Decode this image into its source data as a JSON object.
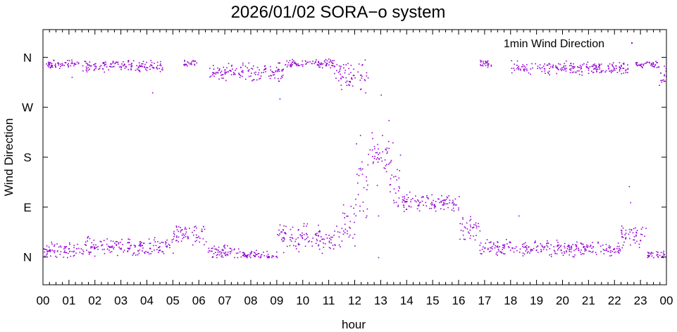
{
  "chart_data": {
    "type": "scatter",
    "title": "2026/01/02 SORA−o system",
    "xlabel": "hour",
    "ylabel": "Wind Direction",
    "x_ticks": [
      "00",
      "01",
      "02",
      "03",
      "04",
      "05",
      "06",
      "07",
      "08",
      "09",
      "10",
      "11",
      "12",
      "13",
      "14",
      "15",
      "16",
      "17",
      "18",
      "19",
      "20",
      "21",
      "22",
      "23",
      "00"
    ],
    "y_ticks": [
      {
        "value": 0,
        "label": "N"
      },
      {
        "value": 90,
        "label": "E"
      },
      {
        "value": 180,
        "label": "S"
      },
      {
        "value": 270,
        "label": "W"
      },
      {
        "value": 360,
        "label": "N"
      }
    ],
    "xlim": [
      0,
      24
    ],
    "ylim": [
      -50,
      410
    ],
    "legend": {
      "position": "top-right"
    },
    "grid": false,
    "series": [
      {
        "name": "1min Wind Direction",
        "color": "#9400d3",
        "marker": "dot",
        "segments": [
          {
            "x_start": 0.0,
            "x_end": 1.5,
            "y_center": 12,
            "spread": 12
          },
          {
            "x_start": 1.5,
            "x_end": 5.0,
            "y_center": 20,
            "spread": 14
          },
          {
            "x_start": 5.0,
            "x_end": 6.3,
            "y_center": 40,
            "spread": 15
          },
          {
            "x_start": 6.3,
            "x_end": 7.6,
            "y_center": 10,
            "spread": 10
          },
          {
            "x_start": 7.6,
            "x_end": 9.0,
            "y_center": 5,
            "spread": 6
          },
          {
            "x_start": 9.0,
            "x_end": 11.5,
            "y_center": 35,
            "spread": 22
          },
          {
            "x_start": 11.5,
            "x_end": 12.0,
            "y_center": 60,
            "spread": 40
          },
          {
            "x_start": 12.0,
            "x_end": 12.5,
            "y_center": 130,
            "spread": 50
          },
          {
            "x_start": 12.5,
            "x_end": 13.3,
            "y_center": 185,
            "spread": 25
          },
          {
            "x_start": 13.3,
            "x_end": 13.8,
            "y_center": 130,
            "spread": 40
          },
          {
            "x_start": 13.8,
            "x_end": 16.0,
            "y_center": 98,
            "spread": 12
          },
          {
            "x_start": 16.0,
            "x_end": 16.8,
            "y_center": 55,
            "spread": 20
          },
          {
            "x_start": 16.8,
            "x_end": 18.2,
            "y_center": 20,
            "spread": 12
          },
          {
            "x_start": 18.2,
            "x_end": 22.2,
            "y_center": 15,
            "spread": 12
          },
          {
            "x_start": 22.2,
            "x_end": 23.2,
            "y_center": 40,
            "spread": 18
          },
          {
            "x_start": 23.2,
            "x_end": 23.9,
            "y_center": 5,
            "spread": 6
          },
          {
            "x_start": 0.1,
            "x_end": 1.4,
            "y_center": 348,
            "spread": 8
          },
          {
            "x_start": 1.5,
            "x_end": 4.6,
            "y_center": 345,
            "spread": 9
          },
          {
            "x_start": 5.4,
            "x_end": 5.9,
            "y_center": 350,
            "spread": 5
          },
          {
            "x_start": 6.4,
            "x_end": 9.3,
            "y_center": 335,
            "spread": 14
          },
          {
            "x_start": 9.3,
            "x_end": 11.2,
            "y_center": 350,
            "spread": 6
          },
          {
            "x_start": 11.2,
            "x_end": 12.5,
            "y_center": 330,
            "spread": 20
          },
          {
            "x_start": 16.8,
            "x_end": 17.3,
            "y_center": 350,
            "spread": 6
          },
          {
            "x_start": 18.0,
            "x_end": 22.5,
            "y_center": 342,
            "spread": 10
          },
          {
            "x_start": 22.8,
            "x_end": 23.7,
            "y_center": 348,
            "spread": 5
          },
          {
            "x_start": 23.7,
            "x_end": 24.0,
            "y_center": 325,
            "spread": 14
          }
        ],
        "points": [
          [
            1.1,
            325
          ],
          [
            4.2,
            297
          ],
          [
            9.1,
            286
          ],
          [
            12.2,
            303
          ],
          [
            12.4,
            297
          ],
          [
            13.0,
            293
          ],
          [
            12.9,
            0
          ],
          [
            13.3,
            247
          ],
          [
            12.65,
            225
          ],
          [
            12.2,
            220
          ],
          [
            13.05,
            220
          ],
          [
            12.05,
            205
          ],
          [
            13.45,
            207
          ],
          [
            11.55,
            95
          ],
          [
            12.9,
            75
          ],
          [
            16.8,
            22
          ],
          [
            18.3,
            75
          ],
          [
            22.55,
            128
          ],
          [
            22.6,
            99
          ],
          [
            13.6,
            140
          ],
          [
            13.2,
            155
          ],
          [
            14.1,
            118
          ],
          [
            15.5,
            105
          ],
          [
            16.0,
            110
          ],
          [
            15.8,
            84
          ],
          [
            12.3,
            100
          ],
          [
            12.15,
            160
          ],
          [
            12.85,
            130
          ],
          [
            13.65,
            92
          ],
          [
            23.4,
            350
          ],
          [
            23.9,
            345
          ]
        ]
      }
    ]
  }
}
